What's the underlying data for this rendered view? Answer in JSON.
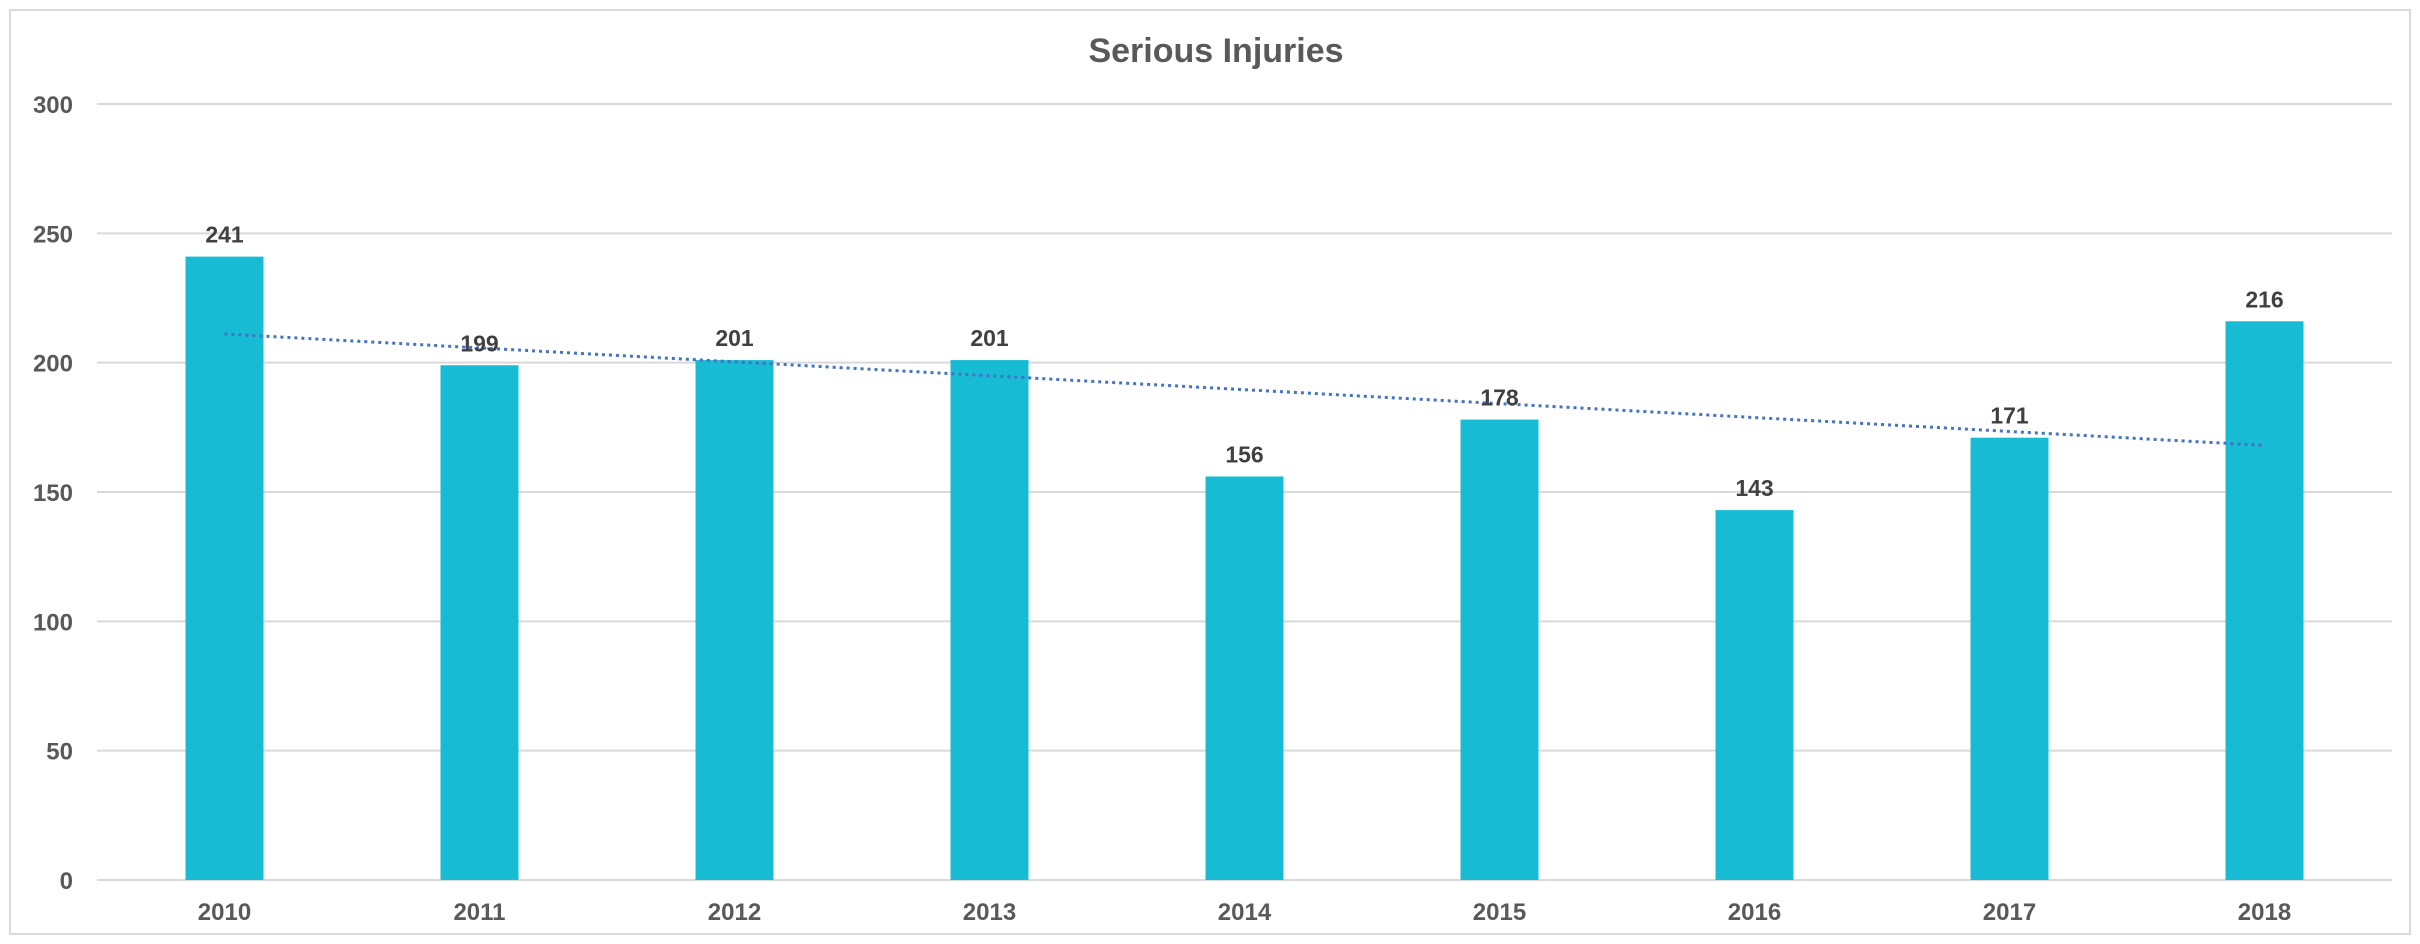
{
  "chart_data": {
    "type": "bar",
    "title": "Serious Injuries",
    "xlabel": "",
    "ylabel": "",
    "categories": [
      "2010",
      "2011",
      "2012",
      "2013",
      "2014",
      "2015",
      "2016",
      "2017",
      "2018"
    ],
    "series": [
      {
        "values": [
          241,
          199,
          201,
          201,
          156,
          178,
          143,
          171,
          216
        ],
        "data_labels": [
          "241",
          "199",
          "201",
          "201",
          "156",
          "178",
          "143",
          "171",
          "216"
        ]
      }
    ],
    "trendline": {
      "type": "linear",
      "style": "dotted"
    },
    "ylim": [
      0,
      300
    ],
    "yticks": [
      0,
      50,
      100,
      150,
      200,
      250,
      300
    ],
    "ytick_labels": [
      "0",
      "50",
      "100",
      "150",
      "200",
      "250",
      "300"
    ],
    "grid": true,
    "legend": "none",
    "colors": {
      "bar": "#17BCD4",
      "trendline": "#4472C4",
      "gridline": "#D9D9D9",
      "border": "#D9D9D9",
      "title_text": "#595959",
      "label_text": "#404040"
    }
  }
}
